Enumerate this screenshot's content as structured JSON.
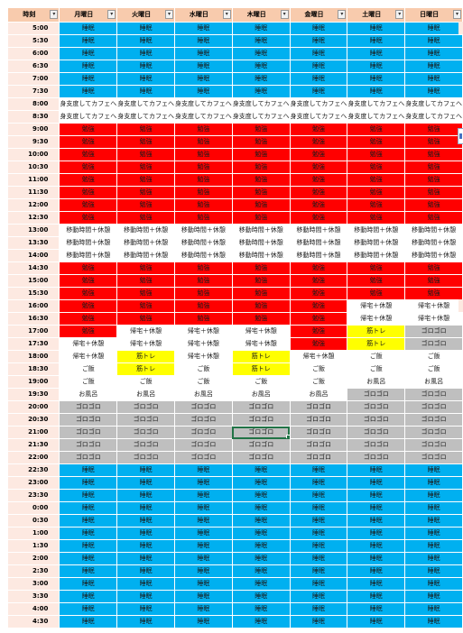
{
  "header": {
    "time_label": "時刻",
    "days": [
      "月曜日",
      "火曜日",
      "水曜日",
      "木曜日",
      "金曜日",
      "土曜日",
      "日曜日"
    ],
    "filter_glyph": "▾"
  },
  "legend": {
    "S": {
      "text": "睡眠",
      "color": "#00b0f0"
    },
    "C": {
      "text": "身支度してカフェへ",
      "color": "#ffffff"
    },
    "W": {
      "text": "勉強",
      "color": "#ff0000"
    },
    "M": {
      "text": "移動時間＋休憩",
      "color": "#ffffff"
    },
    "K": {
      "text": "帰宅＋休憩",
      "color": "#ffffff"
    },
    "Y": {
      "text": "ご飯",
      "color": "#ffffff"
    },
    "T": {
      "text": "筋トレ",
      "color": "#ffff00"
    },
    "B": {
      "text": "お風呂",
      "color": "#ffffff"
    },
    "G": {
      "text": "ゴロゴロ",
      "color": "#bfbfbf"
    }
  },
  "selected_cell": {
    "time": "21:00",
    "day": "木曜日"
  },
  "rows": [
    {
      "time": "5:00",
      "cells": "SSSSSSS"
    },
    {
      "time": "5:30",
      "cells": "SSSSSSS"
    },
    {
      "time": "6:00",
      "cells": "SSSSSSS"
    },
    {
      "time": "6:30",
      "cells": "SSSSSSS"
    },
    {
      "time": "7:00",
      "cells": "SSSSSSS"
    },
    {
      "time": "7:30",
      "cells": "SSSSSSS"
    },
    {
      "time": "8:00",
      "cells": "CCCCCCC"
    },
    {
      "time": "8:30",
      "cells": "CCCCCCC"
    },
    {
      "time": "9:00",
      "cells": "WWWWWWW"
    },
    {
      "time": "9:30",
      "cells": "WWWWWWW"
    },
    {
      "time": "10:00",
      "cells": "WWWWWWW"
    },
    {
      "time": "10:30",
      "cells": "WWWWWWW"
    },
    {
      "time": "11:00",
      "cells": "WWWWWWW"
    },
    {
      "time": "11:30",
      "cells": "WWWWWWW"
    },
    {
      "time": "12:00",
      "cells": "WWWWWWW"
    },
    {
      "time": "12:30",
      "cells": "WWWWWWW"
    },
    {
      "time": "13:00",
      "cells": "MMMMMMM"
    },
    {
      "time": "13:30",
      "cells": "MMMMMMM"
    },
    {
      "time": "14:00",
      "cells": "MMMMMMM"
    },
    {
      "time": "14:30",
      "cells": "WWWWWWW"
    },
    {
      "time": "15:00",
      "cells": "WWWWWWW"
    },
    {
      "time": "15:30",
      "cells": "WWWWWWW"
    },
    {
      "time": "16:00",
      "cells": "WWWWWKK"
    },
    {
      "time": "16:30",
      "cells": "WWWWWKK"
    },
    {
      "time": "17:00",
      "cells": "WKKKWTG"
    },
    {
      "time": "17:30",
      "cells": "KKKKWTG"
    },
    {
      "time": "18:00",
      "cells": "KTKTKYY"
    },
    {
      "time": "18:30",
      "cells": "YTYTYYY"
    },
    {
      "time": "19:00",
      "cells": "YYYYYBB"
    },
    {
      "time": "19:30",
      "cells": "BBBBBGG"
    },
    {
      "time": "20:00",
      "cells": "GGGGGGG"
    },
    {
      "time": "20:30",
      "cells": "GGGGGGG"
    },
    {
      "time": "21:00",
      "cells": "GGGGGGG"
    },
    {
      "time": "21:30",
      "cells": "GGGGGGG"
    },
    {
      "time": "22:00",
      "cells": "GGGGGGG"
    },
    {
      "time": "22:30",
      "cells": "SSSSSSS"
    },
    {
      "time": "23:00",
      "cells": "SSSSSSS"
    },
    {
      "time": "23:30",
      "cells": "SSSSSSS"
    },
    {
      "time": "0:00",
      "cells": "SSSSSSS"
    },
    {
      "time": "0:30",
      "cells": "SSSSSSS"
    },
    {
      "time": "1:00",
      "cells": "SSSSSSS"
    },
    {
      "time": "1:30",
      "cells": "SSSSSSS"
    },
    {
      "time": "2:00",
      "cells": "SSSSSSS"
    },
    {
      "time": "2:30",
      "cells": "SSSSSSS"
    },
    {
      "time": "3:00",
      "cells": "SSSSSSS"
    },
    {
      "time": "3:30",
      "cells": "SSSSSSS"
    },
    {
      "time": "4:00",
      "cells": "SSSSSSS"
    },
    {
      "time": "4:30",
      "cells": "SSSSSSS"
    }
  ]
}
